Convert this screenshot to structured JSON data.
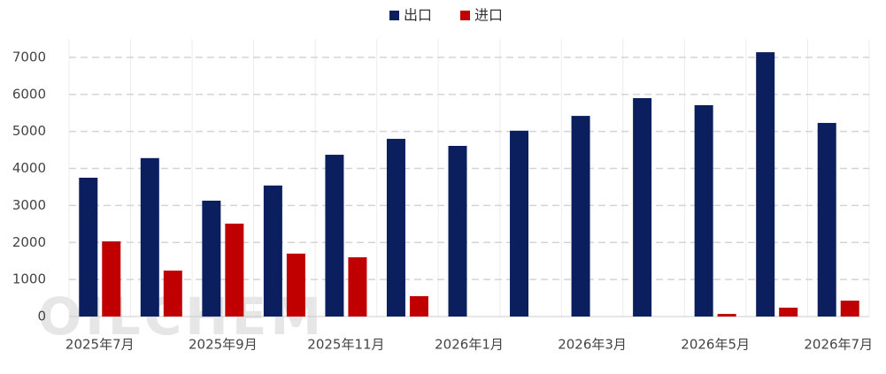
{
  "chart_data": {
    "type": "bar",
    "categories": [
      "2025年7月",
      null,
      "2025年9月",
      null,
      "2025年11月",
      null,
      "2026年1月",
      null,
      "2026年3月",
      null,
      "2026年5月",
      null,
      "2026年7月"
    ],
    "series": [
      {
        "name": "出口",
        "color": "#0b1f5e",
        "values": [
          3750,
          4280,
          3130,
          3540,
          4370,
          4800,
          4610,
          5020,
          5420,
          5900,
          5710,
          7140,
          5230
        ]
      },
      {
        "name": "进口",
        "color": "#c00000",
        "values": [
          2030,
          1240,
          2510,
          1700,
          1600,
          550,
          null,
          null,
          null,
          null,
          70,
          240,
          430
        ]
      }
    ],
    "ylim": [
      0,
      7500
    ],
    "yticks": [
      0,
      1000,
      2000,
      3000,
      4000,
      5000,
      6000,
      7000
    ],
    "grid": true,
    "legend": "top",
    "watermark": "OILCHEM"
  }
}
